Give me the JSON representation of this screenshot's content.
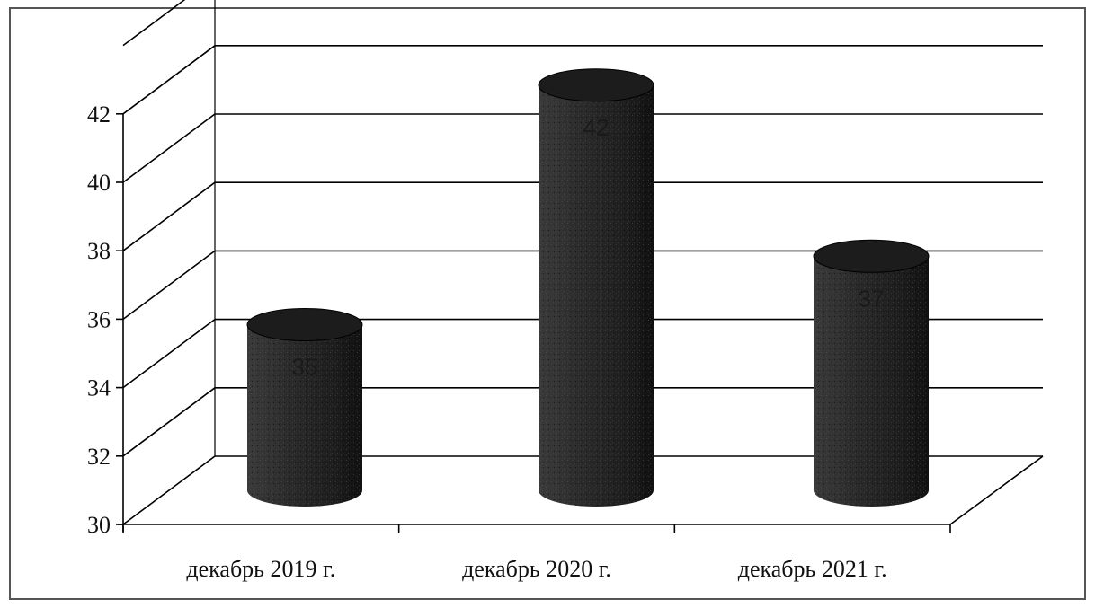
{
  "chart_data": {
    "type": "bar",
    "shape": "cylinder-3d",
    "categories": [
      "декабрь 2019 г.",
      "декабрь 2020 г.",
      "декабрь 2021 г."
    ],
    "values": [
      35,
      42,
      37
    ],
    "data_labels": [
      "35",
      "42",
      "37"
    ],
    "ylim": [
      30,
      44
    ],
    "y_ticks": [
      30,
      32,
      34,
      36,
      38,
      40,
      42
    ],
    "y_tick_labels": [
      "30",
      "32",
      "34",
      "36",
      "38",
      "40",
      "42"
    ],
    "title": "",
    "xlabel": "",
    "ylabel": "",
    "grid": true,
    "legend": "none",
    "colors": {
      "bar": "#2b2b2b",
      "grid": "#000000"
    }
  }
}
